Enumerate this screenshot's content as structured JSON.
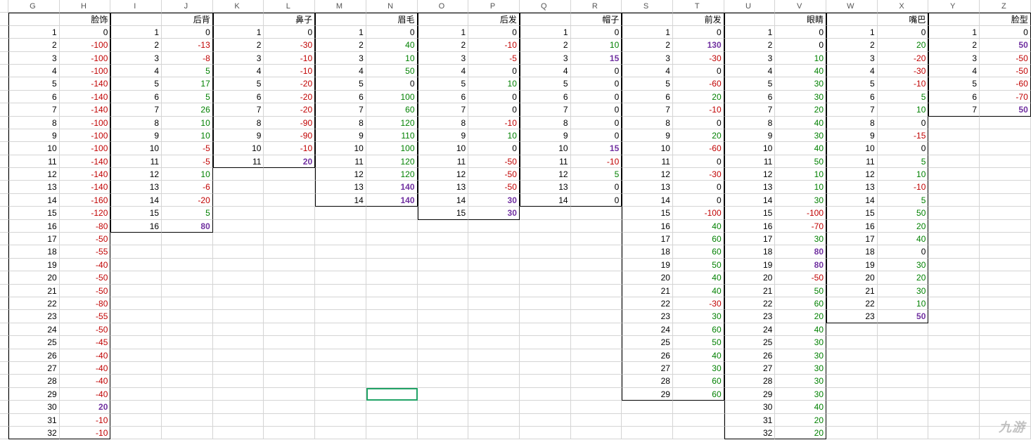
{
  "col_headers": [
    "G",
    "H",
    "I",
    "J",
    "K",
    "L",
    "M",
    "N",
    "O",
    "P",
    "Q",
    "R",
    "S",
    "T",
    "U",
    "V",
    "W",
    "X",
    "Y",
    "Z"
  ],
  "watermark": "九游",
  "selected_cell": {
    "row": 30,
    "col": 7
  },
  "colors": {
    "neg": "#c00000",
    "pos": "#008000",
    "zero": "#000000",
    "bold_pos": "#7030a0",
    "grid": "#d4d4d4",
    "border": "#000000",
    "select": "#21a366"
  },
  "sections": [
    {
      "label": "脸饰",
      "idx_col": 0,
      "val_col": 1,
      "rows": [
        [
          1,
          0,
          "zero"
        ],
        [
          2,
          -100,
          "neg"
        ],
        [
          3,
          -100,
          "neg"
        ],
        [
          4,
          -100,
          "neg"
        ],
        [
          5,
          -140,
          "neg"
        ],
        [
          6,
          -140,
          "neg"
        ],
        [
          7,
          -140,
          "neg"
        ],
        [
          8,
          -100,
          "neg"
        ],
        [
          9,
          -100,
          "neg"
        ],
        [
          10,
          -100,
          "neg"
        ],
        [
          11,
          -140,
          "neg"
        ],
        [
          12,
          -140,
          "neg"
        ],
        [
          13,
          -140,
          "neg"
        ],
        [
          14,
          -160,
          "neg"
        ],
        [
          15,
          -120,
          "neg"
        ],
        [
          16,
          -80,
          "neg"
        ],
        [
          17,
          -50,
          "neg"
        ],
        [
          18,
          -55,
          "neg"
        ],
        [
          19,
          -40,
          "neg"
        ],
        [
          20,
          -50,
          "neg"
        ],
        [
          21,
          -50,
          "neg"
        ],
        [
          22,
          -80,
          "neg"
        ],
        [
          23,
          -55,
          "neg"
        ],
        [
          24,
          -50,
          "neg"
        ],
        [
          25,
          -45,
          "neg"
        ],
        [
          26,
          -40,
          "neg"
        ],
        [
          27,
          -40,
          "neg"
        ],
        [
          28,
          -40,
          "neg"
        ],
        [
          29,
          -40,
          "neg"
        ],
        [
          30,
          20,
          "bpos"
        ],
        [
          31,
          -10,
          "neg"
        ],
        [
          32,
          -10,
          "neg"
        ]
      ]
    },
    {
      "label": "后背",
      "idx_col": 2,
      "val_col": 3,
      "rows": [
        [
          1,
          0,
          "zero"
        ],
        [
          2,
          -13,
          "neg"
        ],
        [
          3,
          -8,
          "neg"
        ],
        [
          4,
          5,
          "pos"
        ],
        [
          5,
          17,
          "pos"
        ],
        [
          6,
          5,
          "pos"
        ],
        [
          7,
          26,
          "pos"
        ],
        [
          8,
          10,
          "pos"
        ],
        [
          9,
          10,
          "pos"
        ],
        [
          10,
          -5,
          "neg"
        ],
        [
          11,
          -5,
          "neg"
        ],
        [
          12,
          10,
          "pos"
        ],
        [
          13,
          -6,
          "neg"
        ],
        [
          14,
          -20,
          "neg"
        ],
        [
          15,
          5,
          "pos"
        ],
        [
          16,
          80,
          "bpos"
        ]
      ]
    },
    {
      "label": "鼻子",
      "idx_col": 4,
      "val_col": 5,
      "rows": [
        [
          1,
          0,
          "zero"
        ],
        [
          2,
          -30,
          "neg"
        ],
        [
          3,
          -10,
          "neg"
        ],
        [
          4,
          -10,
          "neg"
        ],
        [
          5,
          -20,
          "neg"
        ],
        [
          6,
          -20,
          "neg"
        ],
        [
          7,
          -20,
          "neg"
        ],
        [
          8,
          -90,
          "neg"
        ],
        [
          9,
          -90,
          "neg"
        ],
        [
          10,
          -10,
          "neg"
        ],
        [
          11,
          20,
          "bpos"
        ]
      ]
    },
    {
      "label": "眉毛",
      "idx_col": 6,
      "val_col": 7,
      "rows": [
        [
          1,
          0,
          "zero"
        ],
        [
          2,
          40,
          "pos"
        ],
        [
          3,
          10,
          "pos"
        ],
        [
          4,
          50,
          "pos"
        ],
        [
          5,
          0,
          "zero"
        ],
        [
          6,
          100,
          "pos"
        ],
        [
          7,
          60,
          "pos"
        ],
        [
          8,
          120,
          "pos"
        ],
        [
          9,
          110,
          "pos"
        ],
        [
          10,
          100,
          "pos"
        ],
        [
          11,
          120,
          "pos"
        ],
        [
          12,
          120,
          "pos"
        ],
        [
          13,
          140,
          "bpos"
        ],
        [
          14,
          140,
          "bpos"
        ]
      ]
    },
    {
      "label": "后发",
      "idx_col": 8,
      "val_col": 9,
      "rows": [
        [
          1,
          0,
          "zero"
        ],
        [
          2,
          -10,
          "neg"
        ],
        [
          3,
          -5,
          "neg"
        ],
        [
          4,
          0,
          "zero"
        ],
        [
          5,
          10,
          "pos"
        ],
        [
          6,
          0,
          "zero"
        ],
        [
          7,
          0,
          "zero"
        ],
        [
          8,
          -10,
          "neg"
        ],
        [
          9,
          10,
          "pos"
        ],
        [
          10,
          0,
          "zero"
        ],
        [
          11,
          -50,
          "neg"
        ],
        [
          12,
          -50,
          "neg"
        ],
        [
          13,
          -50,
          "neg"
        ],
        [
          14,
          30,
          "bpos"
        ],
        [
          15,
          30,
          "bpos"
        ]
      ]
    },
    {
      "label": "帽子",
      "idx_col": 10,
      "val_col": 11,
      "rows": [
        [
          1,
          0,
          "zero"
        ],
        [
          2,
          10,
          "pos"
        ],
        [
          3,
          15,
          "bpos"
        ],
        [
          4,
          0,
          "zero"
        ],
        [
          5,
          0,
          "zero"
        ],
        [
          6,
          0,
          "zero"
        ],
        [
          7,
          0,
          "zero"
        ],
        [
          8,
          0,
          "zero"
        ],
        [
          9,
          0,
          "zero"
        ],
        [
          10,
          15,
          "bpos"
        ],
        [
          11,
          -10,
          "neg"
        ],
        [
          12,
          5,
          "pos"
        ],
        [
          13,
          0,
          "zero"
        ],
        [
          14,
          0,
          "zero"
        ]
      ]
    },
    {
      "label": "前发",
      "idx_col": 12,
      "val_col": 13,
      "rows": [
        [
          1,
          0,
          "zero"
        ],
        [
          2,
          130,
          "bpos"
        ],
        [
          3,
          -30,
          "neg"
        ],
        [
          4,
          0,
          "zero"
        ],
        [
          5,
          -60,
          "neg"
        ],
        [
          6,
          20,
          "pos"
        ],
        [
          7,
          -10,
          "neg"
        ],
        [
          8,
          0,
          "zero"
        ],
        [
          9,
          20,
          "pos"
        ],
        [
          10,
          -60,
          "neg"
        ],
        [
          11,
          0,
          "zero"
        ],
        [
          12,
          -30,
          "neg"
        ],
        [
          13,
          0,
          "zero"
        ],
        [
          14,
          0,
          "zero"
        ],
        [
          15,
          -100,
          "neg"
        ],
        [
          16,
          40,
          "pos"
        ],
        [
          17,
          60,
          "pos"
        ],
        [
          18,
          60,
          "pos"
        ],
        [
          19,
          50,
          "pos"
        ],
        [
          20,
          40,
          "pos"
        ],
        [
          21,
          40,
          "pos"
        ],
        [
          22,
          -30,
          "neg"
        ],
        [
          23,
          30,
          "pos"
        ],
        [
          24,
          60,
          "pos"
        ],
        [
          25,
          50,
          "pos"
        ],
        [
          26,
          40,
          "pos"
        ],
        [
          27,
          30,
          "pos"
        ],
        [
          28,
          60,
          "pos"
        ],
        [
          29,
          60,
          "pos"
        ]
      ]
    },
    {
      "label": "眼睛",
      "idx_col": 14,
      "val_col": 15,
      "rows": [
        [
          1,
          0,
          "zero"
        ],
        [
          2,
          0,
          "zero"
        ],
        [
          3,
          10,
          "pos"
        ],
        [
          4,
          40,
          "pos"
        ],
        [
          5,
          30,
          "pos"
        ],
        [
          6,
          30,
          "pos"
        ],
        [
          7,
          20,
          "pos"
        ],
        [
          8,
          40,
          "pos"
        ],
        [
          9,
          30,
          "pos"
        ],
        [
          10,
          40,
          "pos"
        ],
        [
          11,
          50,
          "pos"
        ],
        [
          12,
          10,
          "pos"
        ],
        [
          13,
          10,
          "pos"
        ],
        [
          14,
          30,
          "pos"
        ],
        [
          15,
          -100,
          "neg"
        ],
        [
          16,
          -70,
          "neg"
        ],
        [
          17,
          30,
          "pos"
        ],
        [
          18,
          80,
          "bpos"
        ],
        [
          19,
          80,
          "bpos"
        ],
        [
          20,
          -50,
          "neg"
        ],
        [
          21,
          50,
          "pos"
        ],
        [
          22,
          60,
          "pos"
        ],
        [
          23,
          20,
          "pos"
        ],
        [
          24,
          40,
          "pos"
        ],
        [
          25,
          30,
          "pos"
        ],
        [
          26,
          30,
          "pos"
        ],
        [
          27,
          30,
          "pos"
        ],
        [
          28,
          30,
          "pos"
        ],
        [
          29,
          30,
          "pos"
        ],
        [
          30,
          40,
          "pos"
        ],
        [
          31,
          20,
          "pos"
        ],
        [
          32,
          20,
          "pos"
        ]
      ]
    },
    {
      "label": "嘴巴",
      "idx_col": 16,
      "val_col": 17,
      "rows": [
        [
          1,
          0,
          "zero"
        ],
        [
          2,
          20,
          "pos"
        ],
        [
          3,
          -20,
          "neg"
        ],
        [
          4,
          -30,
          "neg"
        ],
        [
          5,
          -10,
          "neg"
        ],
        [
          6,
          5,
          "pos"
        ],
        [
          7,
          10,
          "pos"
        ],
        [
          8,
          0,
          "zero"
        ],
        [
          9,
          -15,
          "neg"
        ],
        [
          10,
          0,
          "zero"
        ],
        [
          11,
          5,
          "pos"
        ],
        [
          12,
          10,
          "pos"
        ],
        [
          13,
          -10,
          "neg"
        ],
        [
          14,
          5,
          "pos"
        ],
        [
          15,
          50,
          "pos"
        ],
        [
          16,
          20,
          "pos"
        ],
        [
          17,
          40,
          "pos"
        ],
        [
          18,
          0,
          "zero"
        ],
        [
          19,
          30,
          "pos"
        ],
        [
          20,
          20,
          "pos"
        ],
        [
          21,
          30,
          "pos"
        ],
        [
          22,
          10,
          "pos"
        ],
        [
          23,
          50,
          "bpos"
        ]
      ]
    },
    {
      "label": "脸型",
      "idx_col": 18,
      "val_col": 19,
      "rows": [
        [
          1,
          0,
          "zero"
        ],
        [
          2,
          50,
          "bpos"
        ],
        [
          3,
          -50,
          "neg"
        ],
        [
          4,
          -50,
          "neg"
        ],
        [
          5,
          -60,
          "neg"
        ],
        [
          6,
          -70,
          "neg"
        ],
        [
          7,
          50,
          "bpos"
        ]
      ]
    }
  ]
}
